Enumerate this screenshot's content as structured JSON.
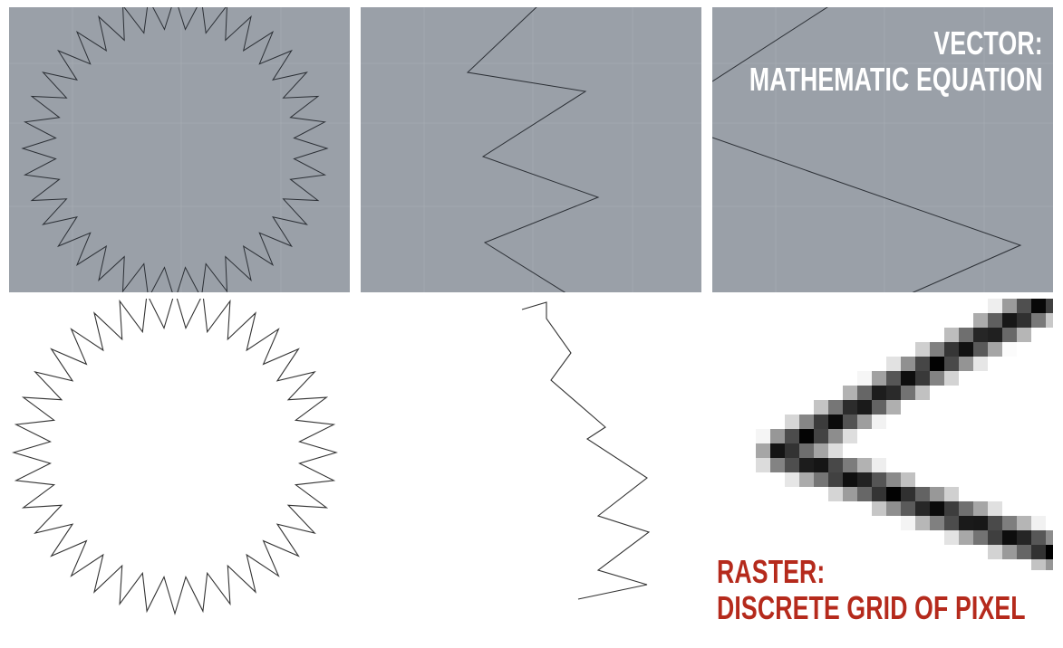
{
  "vector": {
    "title": "VECTOR:",
    "subtitle": "MATHEMATIC EQUATION",
    "background_color": "#9aa0a8",
    "line_color": "#2b2f35"
  },
  "raster": {
    "title": "RASTER:",
    "subtitle": "DISCRETE GRID OF PIXEL",
    "title_color": "#b52a1c",
    "line_color": "#111111"
  },
  "star": {
    "spikes": 36
  }
}
